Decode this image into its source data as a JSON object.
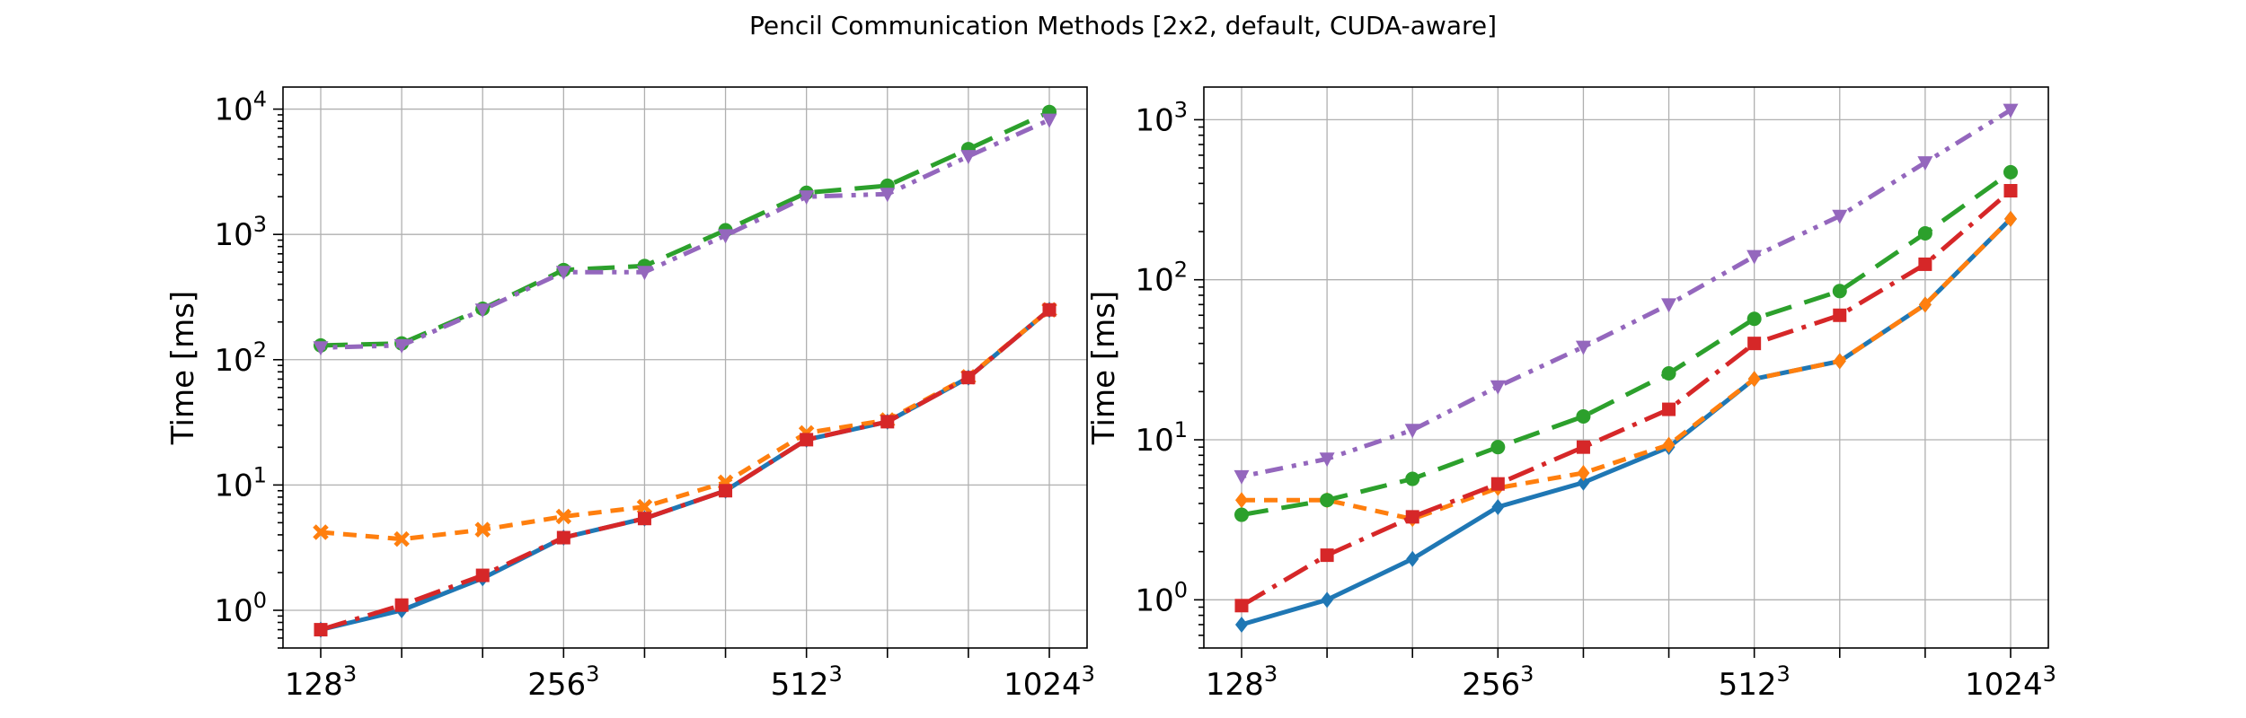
{
  "title": "Pencil Communication Methods [2x2, default, CUDA-aware]",
  "chart_data": [
    {
      "type": "line",
      "ylabel": "Time [ms]",
      "yscale": "log",
      "ylim": [
        0.5,
        15000
      ],
      "y_ticks": [
        {
          "base": "10",
          "exp": "0",
          "value": 1
        },
        {
          "base": "10",
          "exp": "1",
          "value": 10
        },
        {
          "base": "10",
          "exp": "2",
          "value": 100
        },
        {
          "base": "10",
          "exp": "3",
          "value": 1000
        },
        {
          "base": "10",
          "exp": "4",
          "value": 10000
        }
      ],
      "x_ticks": [
        {
          "base": "128",
          "exp": "3",
          "index": 0
        },
        {
          "base": "256",
          "exp": "3",
          "index": 3
        },
        {
          "base": "512",
          "exp": "3",
          "index": 6
        },
        {
          "base": "1024",
          "exp": "3",
          "index": 9
        }
      ],
      "grid": true,
      "series": [
        {
          "color": "#1f77b4",
          "dash": "",
          "marker": "diamond",
          "values": [
            0.7,
            1.0,
            1.8,
            3.8,
            5.4,
            9.0,
            23,
            32,
            72,
            250
          ]
        },
        {
          "color": "#ff7f0e",
          "dash": "3 2",
          "marker": "x",
          "values": [
            4.2,
            3.7,
            4.4,
            5.6,
            6.7,
            10.5,
            26,
            33,
            73,
            250
          ]
        },
        {
          "color": "#2ca02c",
          "dash": "6 3",
          "marker": "circle",
          "values": [
            130,
            135,
            255,
            520,
            560,
            1080,
            2150,
            2450,
            4800,
            9500
          ]
        },
        {
          "color": "#d62728",
          "dash": "6 2 1 2",
          "marker": "square",
          "values": [
            0.7,
            1.1,
            1.9,
            3.8,
            5.4,
            9.0,
            23,
            32,
            72,
            250
          ]
        },
        {
          "color": "#9467bd",
          "dash": "1 1.7 1 1.7 4 2",
          "marker": "triangle-down",
          "values": [
            125,
            130,
            250,
            500,
            500,
            980,
            2000,
            2100,
            4200,
            8200
          ]
        }
      ]
    },
    {
      "type": "line",
      "ylabel": "Time [ms]",
      "yscale": "log",
      "ylim": [
        0.5,
        1600
      ],
      "y_ticks": [
        {
          "base": "10",
          "exp": "0",
          "value": 1
        },
        {
          "base": "10",
          "exp": "1",
          "value": 10
        },
        {
          "base": "10",
          "exp": "2",
          "value": 100
        },
        {
          "base": "10",
          "exp": "3",
          "value": 1000
        }
      ],
      "x_ticks": [
        {
          "base": "128",
          "exp": "3",
          "index": 0
        },
        {
          "base": "256",
          "exp": "3",
          "index": 3
        },
        {
          "base": "512",
          "exp": "3",
          "index": 6
        },
        {
          "base": "1024",
          "exp": "3",
          "index": 9
        }
      ],
      "grid": true,
      "series": [
        {
          "color": "#1f77b4",
          "dash": "",
          "marker": "diamond",
          "values": [
            0.7,
            1.0,
            1.8,
            3.8,
            5.4,
            9.0,
            24,
            31,
            70,
            240
          ]
        },
        {
          "color": "#ff7f0e",
          "dash": "3 2",
          "marker": "diamond",
          "values": [
            4.2,
            4.2,
            3.2,
            5.0,
            6.2,
            9.3,
            24,
            31,
            70,
            240
          ]
        },
        {
          "color": "#2ca02c",
          "dash": "6 3",
          "marker": "circle",
          "values": [
            3.4,
            4.2,
            5.7,
            9.0,
            14,
            26,
            57,
            85,
            195,
            470
          ]
        },
        {
          "color": "#d62728",
          "dash": "6 2 1 2",
          "marker": "square",
          "values": [
            0.92,
            1.9,
            3.3,
            5.3,
            9.0,
            15.5,
            40,
            60,
            125,
            360
          ]
        },
        {
          "color": "#9467bd",
          "dash": "1 1.7 1 1.7 4 2",
          "marker": "triangle-down",
          "values": [
            5.9,
            7.6,
            11.5,
            21.5,
            38,
            70,
            140,
            250,
            540,
            1150
          ]
        }
      ]
    }
  ]
}
